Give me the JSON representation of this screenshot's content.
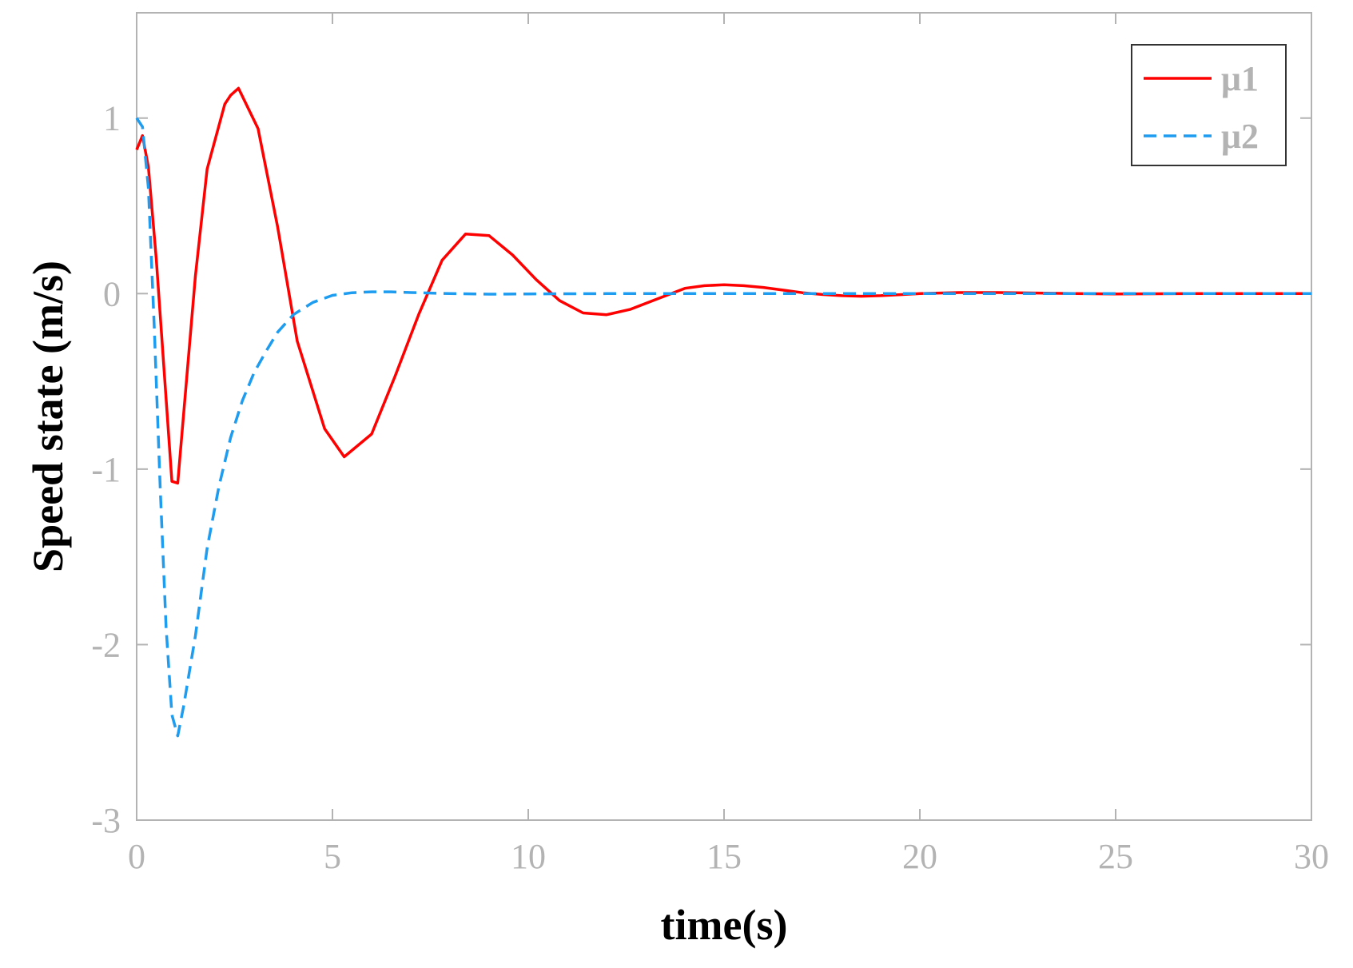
{
  "chart_data": {
    "type": "line",
    "title": "",
    "xlabel": "time(s)",
    "ylabel": "Speed state (m/s)",
    "xlim": [
      0,
      30
    ],
    "ylim": [
      -3,
      1.6
    ],
    "xticks": [
      0,
      5,
      10,
      15,
      20,
      25,
      30
    ],
    "xtick_labels": [
      "0",
      "5",
      "10",
      "15",
      "20",
      "25",
      "30"
    ],
    "yticks": [
      -3,
      -2,
      -1,
      0,
      1
    ],
    "ytick_labels": [
      "-3",
      "-2",
      "-1",
      "0",
      "1"
    ],
    "grid": false,
    "legend_position": "top-right",
    "series": [
      {
        "name": "μ1",
        "color": "#ff0000",
        "style": "solid",
        "x": [
          0,
          0.15,
          0.3,
          0.5,
          0.9,
          1.05,
          1.5,
          1.8,
          2.25,
          2.4,
          2.6,
          3.1,
          3.6,
          4.1,
          4.8,
          5.3,
          6.0,
          6.6,
          7.2,
          7.8,
          8.4,
          9.0,
          9.6,
          10.2,
          10.8,
          11.4,
          12.0,
          12.6,
          13.3,
          14.0,
          14.5,
          15.0,
          15.5,
          16.0,
          16.5,
          17.0,
          17.5,
          18.0,
          18.5,
          19.0,
          19.5,
          20.0,
          21.0,
          22.0,
          23.0,
          24.0,
          25.0,
          26.0,
          27.0,
          28.0,
          29.0,
          30.0
        ],
        "y": [
          0.82,
          0.9,
          0.72,
          0.2,
          -1.07,
          -1.08,
          0.1,
          0.71,
          1.08,
          1.13,
          1.17,
          0.94,
          0.38,
          -0.27,
          -0.77,
          -0.93,
          -0.8,
          -0.47,
          -0.12,
          0.19,
          0.34,
          0.33,
          0.22,
          0.08,
          -0.04,
          -0.11,
          -0.12,
          -0.09,
          -0.03,
          0.03,
          0.045,
          0.05,
          0.045,
          0.035,
          0.02,
          0.005,
          -0.005,
          -0.012,
          -0.015,
          -0.012,
          -0.006,
          0.0,
          0.006,
          0.006,
          0.003,
          0.0,
          -0.002,
          -0.001,
          0.0,
          0.0,
          0.0,
          0.0
        ]
      },
      {
        "name": "μ2",
        "color": "#1e9cf0",
        "style": "dashed",
        "x": [
          0,
          0.15,
          0.3,
          0.45,
          0.6,
          0.75,
          0.9,
          1.05,
          1.2,
          1.5,
          1.8,
          2.1,
          2.4,
          2.7,
          3.0,
          3.3,
          3.6,
          4.0,
          4.5,
          5.0,
          5.5,
          6.0,
          6.5,
          7.0,
          8.0,
          9.0,
          10.0,
          12.0,
          15.0,
          18.0,
          20.0,
          25.0,
          30.0
        ],
        "y": [
          1.0,
          0.95,
          0.6,
          -0.2,
          -1.1,
          -1.9,
          -2.4,
          -2.52,
          -2.35,
          -1.95,
          -1.45,
          -1.1,
          -0.82,
          -0.61,
          -0.45,
          -0.33,
          -0.22,
          -0.12,
          -0.05,
          -0.01,
          0.005,
          0.01,
          0.01,
          0.006,
          0.0,
          -0.003,
          -0.002,
          0.0,
          0.0,
          0.0,
          0.0,
          0.0,
          0.0
        ]
      }
    ]
  }
}
